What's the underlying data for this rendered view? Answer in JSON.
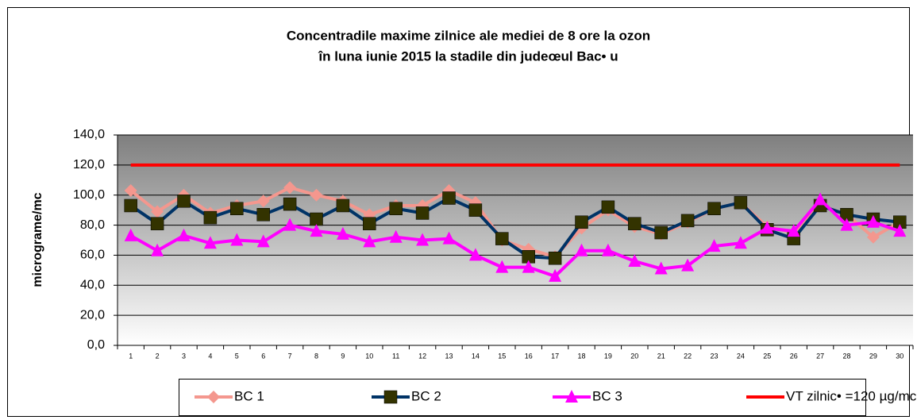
{
  "chart_data": {
    "type": "line",
    "title": [
      "Concentradile maxime zilnice ale mediei de 8 ore la ozon",
      "în luna iunie 2015 la stadile din judeœul Bac• u"
    ],
    "ylabel": "micrograme/mc",
    "categories": [
      "1",
      "2",
      "3",
      "4",
      "5",
      "6",
      "7",
      "8",
      "9",
      "10",
      "11",
      "12",
      "13",
      "14",
      "15",
      "16",
      "17",
      "18",
      "19",
      "20",
      "21",
      "22",
      "23",
      "24",
      "25",
      "26",
      "27",
      "28",
      "29",
      "30"
    ],
    "series": [
      {
        "name": "BC 1",
        "color": "#f4978e",
        "marker": "diamond",
        "values": [
          103,
          89,
          100,
          88,
          93,
          96,
          105,
          100,
          96,
          87,
          93,
          93,
          103,
          95,
          70,
          64,
          59,
          78,
          90,
          79,
          74,
          82,
          91,
          95,
          79,
          75,
          93,
          87,
          72,
          82
        ]
      },
      {
        "name": "BC 2",
        "color": "#003366",
        "marker": "square",
        "values": [
          93,
          81,
          96,
          85,
          91,
          87,
          94,
          84,
          93,
          81,
          91,
          88,
          98,
          90,
          71,
          59,
          58,
          82,
          92,
          81,
          75,
          83,
          91,
          95,
          77,
          71,
          93,
          87,
          84,
          82
        ]
      },
      {
        "name": "BC 3",
        "color": "#ff00ff",
        "marker": "triangle",
        "values": [
          73,
          63,
          73,
          68,
          70,
          69,
          80,
          76,
          74,
          69,
          72,
          70,
          71,
          60,
          52,
          52,
          46,
          63,
          63,
          56,
          51,
          53,
          66,
          68,
          78,
          76,
          97,
          80,
          82,
          76
        ]
      },
      {
        "name": "VT zilnic• =120 µg/mc",
        "color": "#ff0000",
        "marker": "none",
        "values": [
          120,
          120,
          120,
          120,
          120,
          120,
          120,
          120,
          120,
          120,
          120,
          120,
          120,
          120,
          120,
          120,
          120,
          120,
          120,
          120,
          120,
          120,
          120,
          120,
          120,
          120,
          120,
          120,
          120,
          120
        ]
      }
    ],
    "ylim": [
      0,
      140
    ],
    "yticks": [
      {
        "value": 0,
        "label": "0,0"
      },
      {
        "value": 20,
        "label": "20,0"
      },
      {
        "value": 40,
        "label": "40,0"
      },
      {
        "value": 60,
        "label": "60,0"
      },
      {
        "value": 80,
        "label": "80,0"
      },
      {
        "value": 100,
        "label": "100,0"
      },
      {
        "value": 120,
        "label": "120,0"
      },
      {
        "value": 140,
        "label": "140,0"
      }
    ],
    "grid": true,
    "legend": "bottom"
  }
}
